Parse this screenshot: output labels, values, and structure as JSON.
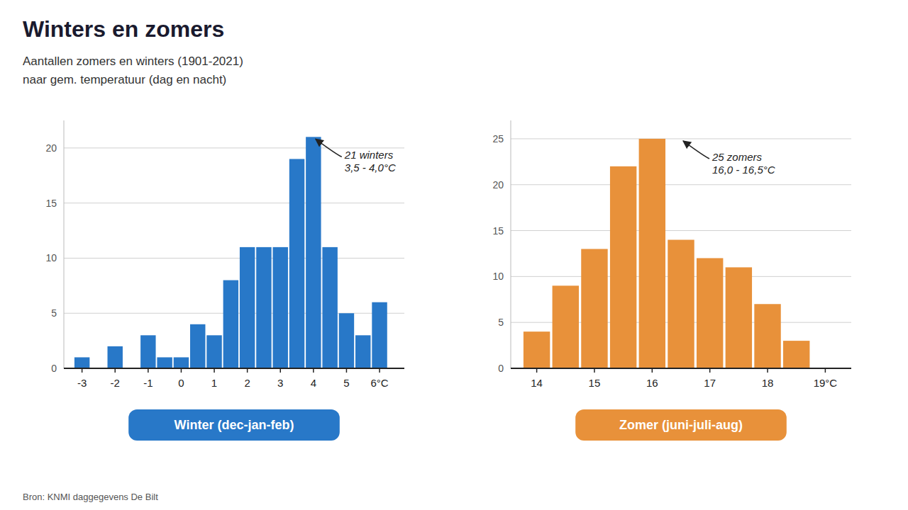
{
  "title": "Winters en zomers",
  "subtitle": [
    "Aantallen zomers en winters (1901-2021)",
    "naar gem. temperatuur (dag en nacht)"
  ],
  "source": "Bron: KNMI daggegevens De Bilt",
  "chart_data": [
    {
      "type": "bar",
      "xlabel": "Winter (dec-jan-feb)",
      "x": [
        -3.0,
        -2.5,
        -2.0,
        -1.5,
        -1.0,
        -0.5,
        0.0,
        0.5,
        1.0,
        1.5,
        2.0,
        2.5,
        3.0,
        3.5,
        4.0,
        4.5,
        5.0,
        5.5,
        6.0
      ],
      "values": [
        1,
        0,
        2,
        0,
        3,
        1,
        1,
        4,
        3,
        8,
        11,
        11,
        11,
        19,
        21,
        11,
        5,
        3,
        6
      ],
      "color": "#2878C8",
      "xlim": [
        -3.55,
        6.75
      ],
      "xticks": [
        -3,
        -2,
        -1,
        0,
        1,
        2,
        3,
        4,
        5,
        {
          "value": 6,
          "label": "6°C"
        }
      ],
      "ylim": [
        0,
        22.5
      ],
      "yticks": [
        0,
        5,
        10,
        15,
        20
      ],
      "grid": true,
      "annotations": [
        {
          "text": "21 winters\n3,5 - 4,0°C",
          "x": 4.0,
          "y": 21.0
        }
      ]
    },
    {
      "type": "bar",
      "xlabel": "Zomer (juni-juli-aug)",
      "x": [
        14.0,
        14.5,
        15.0,
        15.5,
        16.0,
        16.5,
        17.0,
        17.5,
        18.0,
        18.5
      ],
      "values": [
        4,
        9,
        13,
        22,
        25,
        14,
        12,
        11,
        7,
        3
      ],
      "color": "#E8913A",
      "xlim": [
        13.55,
        19.45
      ],
      "xticks": [
        14,
        15,
        16,
        17,
        18,
        {
          "value": 19,
          "label": "19°C"
        }
      ],
      "ylim": [
        0,
        27
      ],
      "yticks": [
        0,
        5,
        10,
        15,
        20,
        25
      ],
      "grid": true,
      "annotations": [
        {
          "text": "25 zomers\n16,0 - 16,5°C",
          "x": 16.5,
          "y": 25.0
        }
      ]
    }
  ]
}
